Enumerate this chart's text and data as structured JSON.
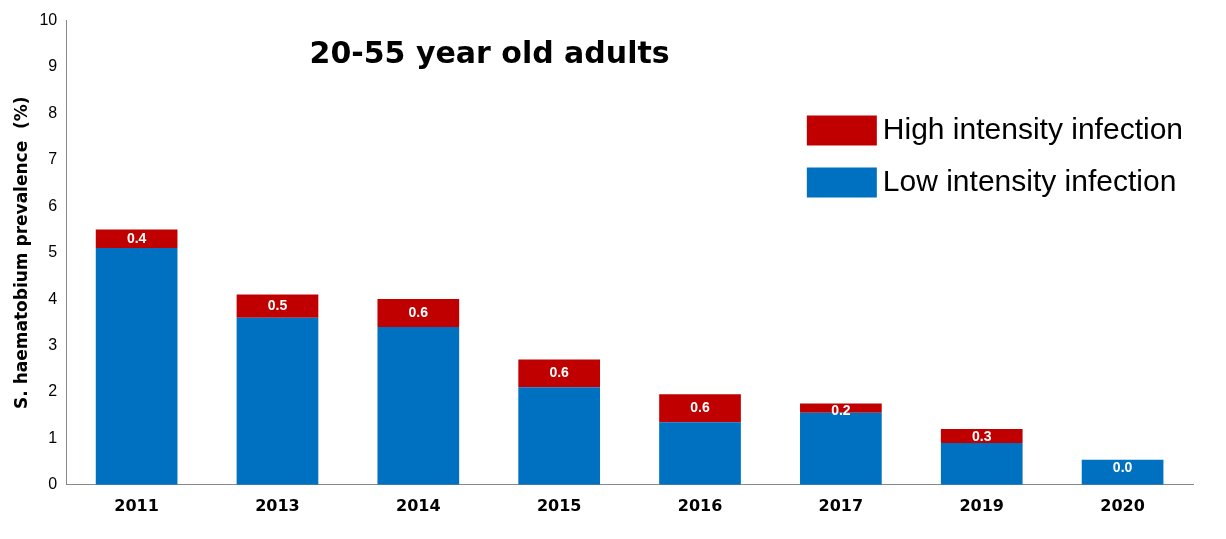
{
  "chart_data": {
    "type": "bar",
    "title": "20-55 year old adults",
    "ylabel": "S. haematobium prevalence  (%)",
    "categories": [
      "2011",
      "2013",
      "2014",
      "2015",
      "2016",
      "2017",
      "2019",
      "2020"
    ],
    "stacked": true,
    "series": [
      {
        "name": "Low intensity infection",
        "color": "#0070c0",
        "values": [
          5.1,
          3.6,
          3.4,
          2.1,
          1.35,
          1.55,
          0.9,
          0.54
        ]
      },
      {
        "name": "High intensity infection",
        "color": "#c00000",
        "values": [
          0.4,
          0.5,
          0.6,
          0.6,
          0.6,
          0.2,
          0.3,
          0.0
        ],
        "value_labels": [
          "0.4",
          "0.5",
          "0.6",
          "0.6",
          "0.6",
          "0.2",
          "0.3",
          "0.0"
        ]
      }
    ],
    "ylim": [
      0,
      10
    ],
    "yticks": [
      0,
      1,
      2,
      3,
      4,
      5,
      6,
      7,
      8,
      9,
      10
    ],
    "grid": false,
    "legend": "top right"
  }
}
